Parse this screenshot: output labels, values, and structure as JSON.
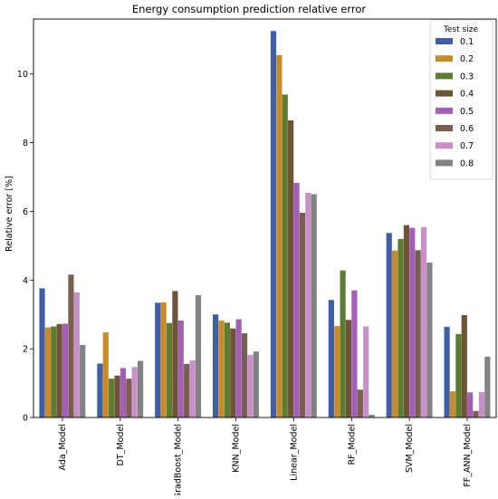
{
  "chart_data": {
    "type": "bar",
    "title": "Energy consumption prediction relative error",
    "xlabel": "",
    "ylabel": "Relative error [%]",
    "ylim": [
      0,
      11.6
    ],
    "yticks": [
      0,
      2,
      4,
      6,
      8,
      10
    ],
    "categories": [
      "Ada_Model",
      "DT_Model",
      "GradBoost_Model",
      "KNN_Model",
      "Linear_Model",
      "RF_Model",
      "SVM_Model",
      "FF_ANN_Model"
    ],
    "legend": {
      "title": "Test size",
      "placement": "top-right"
    },
    "series": [
      {
        "name": "0.1",
        "color": "#3f5ea8",
        "values": [
          3.76,
          1.57,
          3.34,
          3.0,
          11.25,
          3.42,
          5.37,
          2.64
        ]
      },
      {
        "name": "0.2",
        "color": "#c88b2a",
        "values": [
          2.62,
          2.48,
          3.35,
          2.82,
          10.55,
          2.66,
          4.86,
          0.76
        ]
      },
      {
        "name": "0.3",
        "color": "#5c7c32",
        "values": [
          2.65,
          1.13,
          2.75,
          2.76,
          9.4,
          4.28,
          5.2,
          2.43
        ]
      },
      {
        "name": "0.4",
        "color": "#6e5336",
        "values": [
          2.72,
          1.22,
          3.68,
          2.59,
          8.65,
          2.84,
          5.6,
          2.98
        ]
      },
      {
        "name": "0.5",
        "color": "#a25fb5",
        "values": [
          2.73,
          1.44,
          2.82,
          2.86,
          6.83,
          3.7,
          5.52,
          0.73
        ]
      },
      {
        "name": "0.6",
        "color": "#7a5f50",
        "values": [
          4.16,
          1.13,
          1.56,
          2.45,
          5.96,
          0.81,
          4.87,
          0.19
        ]
      },
      {
        "name": "0.7",
        "color": "#c890c8",
        "values": [
          3.64,
          1.47,
          1.66,
          1.82,
          6.54,
          2.65,
          5.54,
          0.74
        ]
      },
      {
        "name": "0.8",
        "color": "#828282",
        "values": [
          2.11,
          1.65,
          3.56,
          1.92,
          6.5,
          0.08,
          4.51,
          1.77
        ]
      }
    ]
  }
}
